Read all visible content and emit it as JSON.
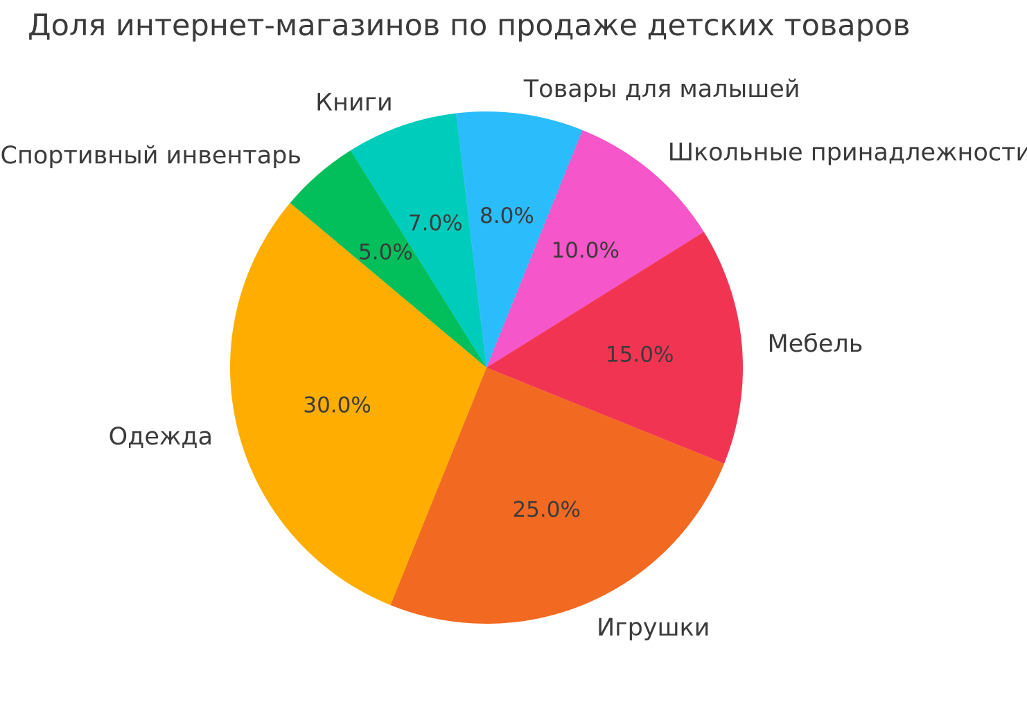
{
  "chart_data": {
    "type": "pie",
    "title": "Доля интернет-магазинов по продаже детских товаров",
    "labels": [
      "Спортивный инвентарь",
      "Книги",
      "Товары для малышей",
      "Школьные принадлежности",
      "Мебель",
      "Игрушки",
      "Одежда"
    ],
    "values": [
      5,
      7,
      8,
      10,
      15,
      25,
      30
    ],
    "pct_labels": [
      "5.0%",
      "7.0%",
      "8.0%",
      "10.0%",
      "15.0%",
      "25.0%",
      "30.0%"
    ],
    "colors": [
      "#02BF5B",
      "#00CCBC",
      "#2BBCFB",
      "#F556C9",
      "#F23453",
      "#F26A21",
      "#FFAE00"
    ],
    "start_angle": 140,
    "direction": "clockwise",
    "legend": "none",
    "grid": "off",
    "label_distance": 1.1,
    "pct_distance": 0.6,
    "center": [
      702,
      531
    ],
    "radius": 370,
    "text_color": "#3b3b3b",
    "background": "#ffffff"
  }
}
